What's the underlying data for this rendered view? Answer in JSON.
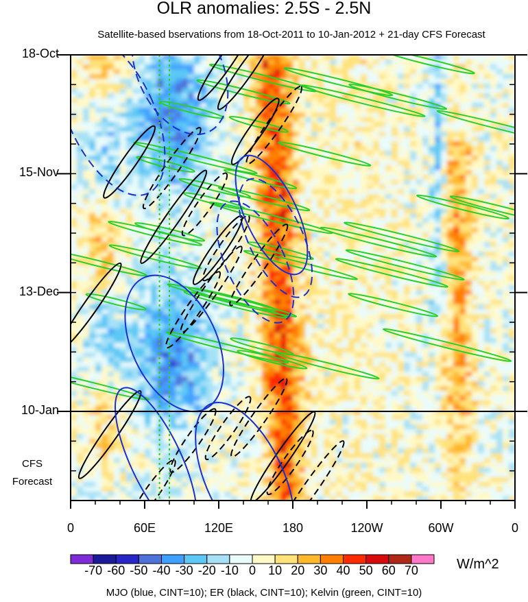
{
  "chart_data": {
    "type": "heatmap",
    "title": "OLR anomalies: 2.5S - 2.5N",
    "subtitle": "Satellite-based bservations from 18-Oct-2011 to 10-Jan-2012 + 21-day CFS Forecast",
    "x_tick_labels": [
      "0",
      "60E",
      "120E",
      "180",
      "120W",
      "60W",
      "0"
    ],
    "x_ticks_deg_east": [
      0,
      60,
      120,
      180,
      240,
      300,
      360
    ],
    "y_tick_labels": [
      "18-Oct",
      "15-Nov",
      "13-Dec",
      "10-Jan"
    ],
    "y_ticks_dates": [
      "2011-10-18",
      "2011-11-15",
      "2011-12-13",
      "2012-01-10"
    ],
    "y_range_dates": [
      "2011-10-18",
      "2012-01-31"
    ],
    "observation_end": "2012-01-10",
    "forecast_label_line1": "CFS",
    "forecast_label_line2": "Forecast",
    "colorbar": {
      "labels": [
        "-70",
        "-60",
        "-50",
        "-40",
        "-30",
        "-20",
        "-10",
        "0",
        "10",
        "20",
        "30",
        "40",
        "50",
        "60",
        "70"
      ],
      "colors": [
        "#7f2bd8",
        "#1a1a9a",
        "#2727c8",
        "#4f71da",
        "#3fa0ff",
        "#5cc8f5",
        "#a6e1f7",
        "#e9fbfb",
        "#fff9c8",
        "#ffe27a",
        "#ffb82b",
        "#ff7f00",
        "#ff2a00",
        "#d80a0a",
        "#b02818",
        "#ff77c8"
      ],
      "units": "W/m^2"
    },
    "legend_text": "MJO (blue, CINT=10); ER (black, CINT=10); Kelvin (green, CINT=10)",
    "contour_colors": {
      "MJO": "#1b2fd0",
      "ER": "#000000",
      "Kelvin": "#2ad02a"
    },
    "approx_features": [
      {
        "lon_range": [
          150,
          180
        ],
        "value": 40,
        "note": "positive anomaly band near dateline"
      },
      {
        "lon_range": [
          190,
          270
        ],
        "value": 5,
        "note": "near-neutral central Pacific"
      },
      {
        "lon_range": [
          60,
          110
        ],
        "value": -40,
        "note": "negative anomalies Indian Ocean / Maritime Continent"
      },
      {
        "lon_range": [
          300,
          330
        ],
        "value": 25,
        "note": "positive band South America"
      }
    ]
  }
}
